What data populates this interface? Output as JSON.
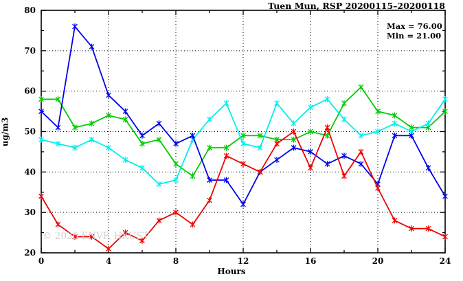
{
  "title": "Tuen Mun, RSP 20200115–20200118",
  "annotation": {
    "max_label": "Max = 76.00",
    "min_label": "Min = 21.00"
  },
  "watermark": "© 2026 ENVF, HKUST",
  "chart_data": {
    "type": "line",
    "title": "Tuen Mun, RSP 20200115–20200118",
    "xlabel": "Hours",
    "ylabel": "ug/m3",
    "xlim": [
      0,
      24
    ],
    "ylim": [
      20,
      80
    ],
    "x_major_ticks": [
      0,
      4,
      8,
      12,
      16,
      20,
      24
    ],
    "x_minor_ticks": [
      2,
      6,
      10,
      14,
      18,
      22
    ],
    "y_major_ticks": [
      20,
      30,
      40,
      50,
      60,
      70,
      80
    ],
    "y_minor_ticks": [
      25,
      35,
      45,
      55,
      65,
      75
    ],
    "grid_x": [
      4,
      8,
      12,
      16,
      20
    ],
    "grid_y": [
      30,
      40,
      50,
      60,
      70
    ],
    "grid_style": "dotted",
    "legend": "none",
    "stats": {
      "max": 76.0,
      "min": 21.0
    },
    "x": [
      0,
      1,
      2,
      3,
      4,
      5,
      6,
      7,
      8,
      9,
      10,
      11,
      12,
      13,
      14,
      15,
      16,
      17,
      18,
      19,
      20,
      21,
      22,
      23,
      24
    ],
    "series": [
      {
        "name": "green",
        "color": "#00cc00",
        "values": [
          58,
          58,
          51,
          52,
          54,
          53,
          47,
          48,
          42,
          39,
          46,
          46,
          49,
          49,
          48,
          48,
          50,
          49,
          57,
          61,
          55,
          54,
          51,
          51,
          55
        ]
      },
      {
        "name": "cyan",
        "color": "#00eeee",
        "values": [
          48,
          47,
          46,
          48,
          46,
          43,
          41,
          37,
          38,
          48,
          53,
          57,
          47,
          46,
          57,
          52,
          56,
          58,
          53,
          49,
          50,
          52,
          50,
          52,
          58
        ]
      },
      {
        "name": "blue",
        "color": "#0000ee",
        "values": [
          55,
          51,
          76,
          71,
          59,
          55,
          49,
          52,
          47,
          49,
          38,
          38,
          32,
          40,
          43,
          46,
          45,
          42,
          44,
          42,
          37,
          49,
          49,
          41,
          34
        ]
      },
      {
        "name": "red",
        "color": "#ee0000",
        "values": [
          34,
          27,
          24,
          24,
          21,
          25,
          23,
          28,
          30,
          27,
          33,
          44,
          42,
          40,
          47,
          50,
          41,
          51,
          39,
          45,
          36,
          28,
          26,
          26,
          24
        ]
      }
    ]
  }
}
